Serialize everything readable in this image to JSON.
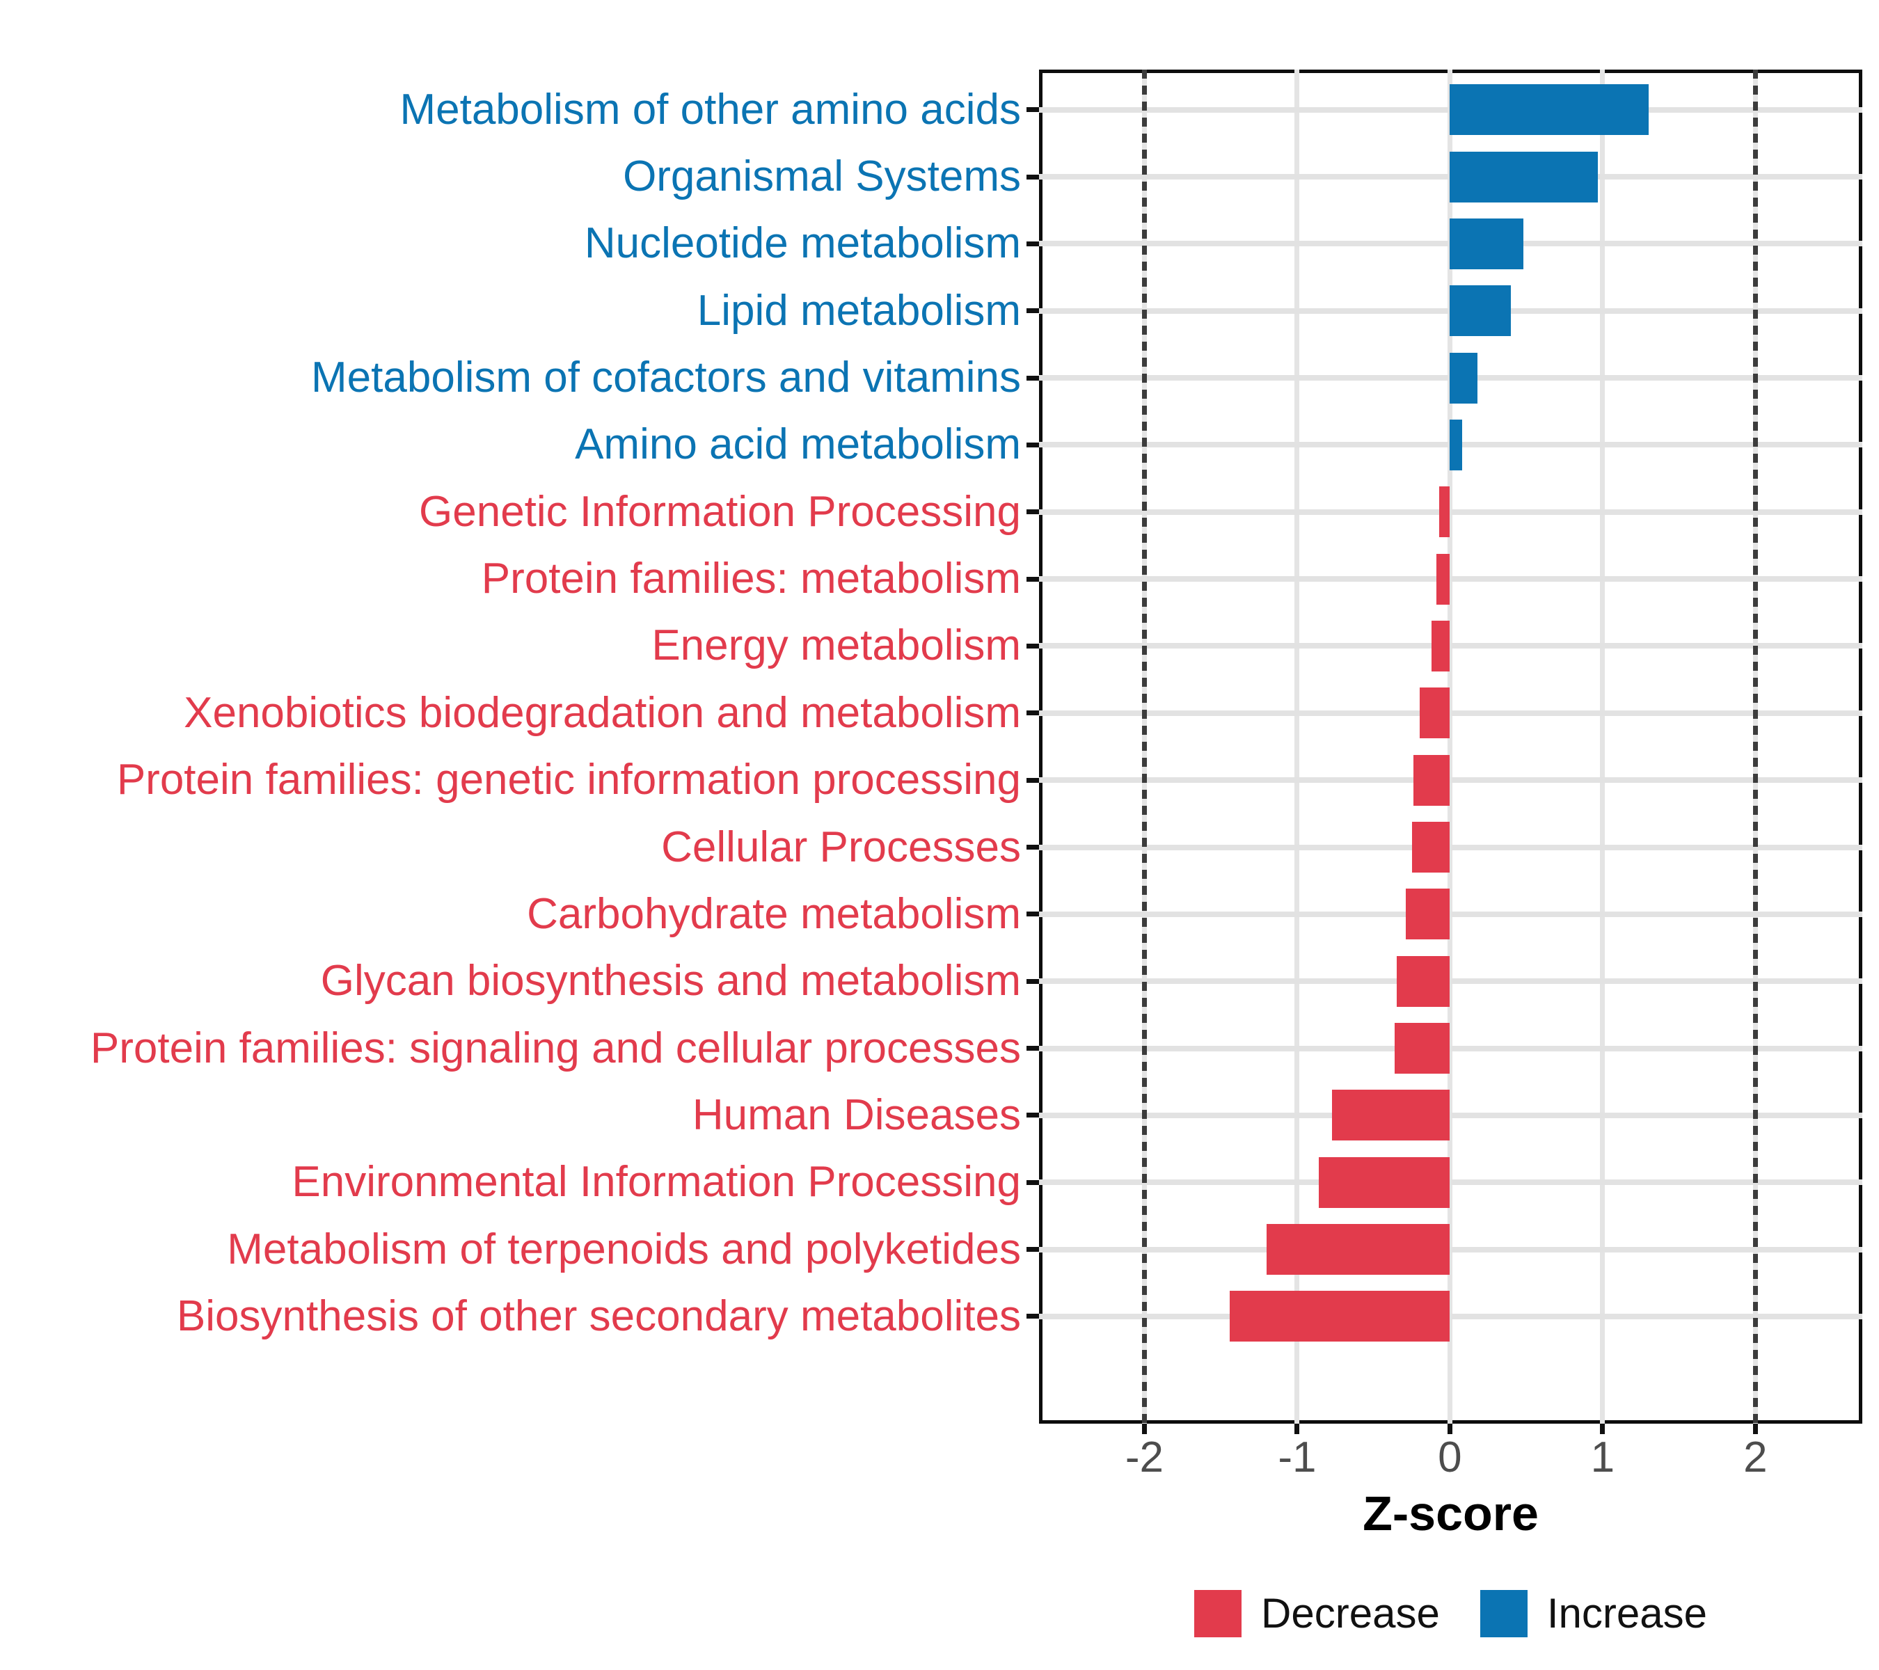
{
  "chart_data": {
    "type": "bar",
    "orientation": "horizontal",
    "title": "",
    "xlabel": "Z-score",
    "ylabel": "",
    "xlim": [
      -2.69,
      2.7
    ],
    "grid": true,
    "x_ticks": [
      {
        "value": -2,
        "label": "-2"
      },
      {
        "value": -1,
        "label": "-1"
      },
      {
        "value": 0,
        "label": "0"
      },
      {
        "value": 1,
        "label": "1"
      },
      {
        "value": 2,
        "label": "2"
      }
    ],
    "reference_lines": [
      -2,
      2
    ],
    "colors": {
      "increase": "#0b74b3",
      "decrease": "#e23b4c",
      "grid": "#e4e4e4",
      "axis_text": "#4d4d4d",
      "reference_line": "#3c3c3c"
    },
    "legend": {
      "position": "bottom",
      "decrease_label": "Decrease",
      "increase_label": "Increase"
    },
    "categories": [
      {
        "label": "Metabolism of other amino acids",
        "value": 1.3,
        "direction": "increase"
      },
      {
        "label": "Organismal Systems",
        "value": 0.97,
        "direction": "increase"
      },
      {
        "label": "Nucleotide metabolism",
        "value": 0.48,
        "direction": "increase"
      },
      {
        "label": "Lipid metabolism",
        "value": 0.4,
        "direction": "increase"
      },
      {
        "label": "Metabolism of cofactors and vitamins",
        "value": 0.18,
        "direction": "increase"
      },
      {
        "label": "Amino acid metabolism",
        "value": 0.08,
        "direction": "increase"
      },
      {
        "label": "Genetic Information Processing",
        "value": -0.07,
        "direction": "decrease"
      },
      {
        "label": "Protein families: metabolism",
        "value": -0.09,
        "direction": "decrease"
      },
      {
        "label": "Energy metabolism",
        "value": -0.12,
        "direction": "decrease"
      },
      {
        "label": "Xenobiotics biodegradation and metabolism",
        "value": -0.2,
        "direction": "decrease"
      },
      {
        "label": "Protein families: genetic information processing",
        "value": -0.24,
        "direction": "decrease"
      },
      {
        "label": "Cellular Processes",
        "value": -0.25,
        "direction": "decrease"
      },
      {
        "label": "Carbohydrate metabolism",
        "value": -0.29,
        "direction": "decrease"
      },
      {
        "label": "Glycan biosynthesis and metabolism",
        "value": -0.35,
        "direction": "decrease"
      },
      {
        "label": "Protein families: signaling and cellular processes",
        "value": -0.36,
        "direction": "decrease"
      },
      {
        "label": "Human Diseases",
        "value": -0.77,
        "direction": "decrease"
      },
      {
        "label": "Environmental Information Processing",
        "value": -0.86,
        "direction": "decrease"
      },
      {
        "label": "Metabolism of terpenoids and polyketides",
        "value": -1.2,
        "direction": "decrease"
      },
      {
        "label": "Biosynthesis of other secondary metabolites",
        "value": -1.44,
        "direction": "decrease"
      }
    ]
  }
}
